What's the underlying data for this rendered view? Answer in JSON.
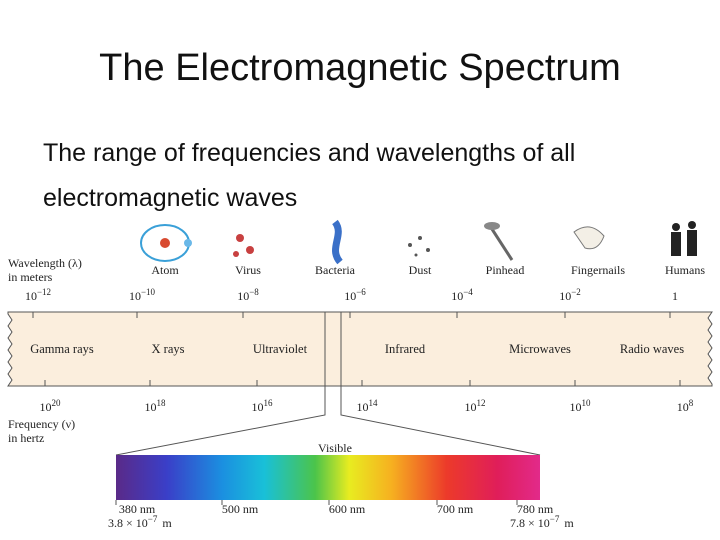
{
  "title": "The Electromagnetic Spectrum",
  "subtitle": [
    "The range of frequencies and wavelengths of all",
    "electromagnetic waves"
  ],
  "diagram": {
    "wavelength_axis": {
      "label": [
        "Wavelength (λ)",
        "in meters"
      ],
      "ticks": [
        {
          "base": "10",
          "exp": "−12"
        },
        {
          "base": "10",
          "exp": "−10"
        },
        {
          "base": "10",
          "exp": "−8"
        },
        {
          "base": "10",
          "exp": "−6"
        },
        {
          "base": "10",
          "exp": "−4"
        },
        {
          "base": "10",
          "exp": "−2"
        },
        {
          "base": "1"
        }
      ]
    },
    "objects": [
      "Atom",
      "Virus",
      "Bacteria",
      "Dust",
      "Pinhead",
      "Fingernails",
      "Humans"
    ],
    "bands": [
      "Gamma rays",
      "X rays",
      "Ultraviolet",
      "Infrared",
      "Microwaves",
      "Radio waves"
    ],
    "frequency_axis": {
      "label": [
        "Frequency (ν)",
        "in hertz"
      ],
      "ticks": [
        {
          "base": "10",
          "exp": "20"
        },
        {
          "base": "10",
          "exp": "18"
        },
        {
          "base": "10",
          "exp": "16"
        },
        {
          "base": "10",
          "exp": "14"
        },
        {
          "base": "10",
          "exp": "12"
        },
        {
          "base": "10",
          "exp": "10"
        },
        {
          "base": "10",
          "exp": "8"
        }
      ]
    },
    "visible": {
      "label": "Visible",
      "ticks": [
        "380 nm",
        "500 nm",
        "600 nm",
        "700 nm",
        "780 nm"
      ],
      "ends": [
        {
          "base": "3.8 × 10",
          "exp": "−7",
          "unit": "m"
        },
        {
          "base": "7.8 × 10",
          "exp": "−7",
          "unit": "m"
        }
      ]
    }
  }
}
